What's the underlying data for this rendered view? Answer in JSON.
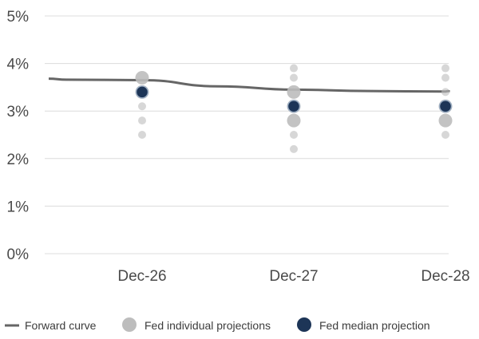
{
  "chart_data": {
    "type": "scatter",
    "title": "",
    "xlabel": "",
    "ylabel": "",
    "ylim": [
      0,
      5
    ],
    "y_ticks": [
      "0%",
      "1%",
      "2%",
      "3%",
      "4%",
      "5%"
    ],
    "categories": [
      "Dec-26",
      "Dec-27",
      "Dec-28"
    ],
    "grid": "horizontal",
    "legend_position": "bottom",
    "series": [
      {
        "name": "Forward curve",
        "kind": "line",
        "color": "#666666",
        "x": [
          -1.0,
          -0.5,
          0.0,
          0.5,
          1.0,
          1.5,
          2.0,
          2.5,
          3.0
        ],
        "values": [
          3.68,
          3.66,
          3.65,
          3.52,
          3.45,
          3.42,
          3.41,
          3.42,
          3.44
        ]
      },
      {
        "name": "Fed individual projections",
        "kind": "dots",
        "color": "#bdbdbd",
        "points": [
          {
            "category": "Dec-26",
            "value": 3.7,
            "size": "large"
          },
          {
            "category": "Dec-26",
            "value": 3.4,
            "size": "large"
          },
          {
            "category": "Dec-26",
            "value": 3.1,
            "size": "small"
          },
          {
            "category": "Dec-26",
            "value": 2.8,
            "size": "small"
          },
          {
            "category": "Dec-26",
            "value": 2.5,
            "size": "small"
          },
          {
            "category": "Dec-27",
            "value": 3.9,
            "size": "small"
          },
          {
            "category": "Dec-27",
            "value": 3.7,
            "size": "small"
          },
          {
            "category": "Dec-27",
            "value": 3.4,
            "size": "large"
          },
          {
            "category": "Dec-27",
            "value": 3.1,
            "size": "large"
          },
          {
            "category": "Dec-27",
            "value": 2.8,
            "size": "large"
          },
          {
            "category": "Dec-27",
            "value": 2.5,
            "size": "small"
          },
          {
            "category": "Dec-27",
            "value": 2.2,
            "size": "small"
          },
          {
            "category": "Dec-28",
            "value": 3.9,
            "size": "small"
          },
          {
            "category": "Dec-28",
            "value": 3.7,
            "size": "small"
          },
          {
            "category": "Dec-28",
            "value": 3.4,
            "size": "small"
          },
          {
            "category": "Dec-28",
            "value": 3.1,
            "size": "large"
          },
          {
            "category": "Dec-28",
            "value": 2.8,
            "size": "large"
          },
          {
            "category": "Dec-28",
            "value": 2.5,
            "size": "small"
          }
        ]
      },
      {
        "name": "Fed median projection",
        "kind": "dots",
        "color": "#1d3557",
        "points": [
          {
            "category": "Dec-26",
            "value": 3.4
          },
          {
            "category": "Dec-27",
            "value": 3.1
          },
          {
            "category": "Dec-28",
            "value": 3.1
          }
        ]
      }
    ]
  }
}
